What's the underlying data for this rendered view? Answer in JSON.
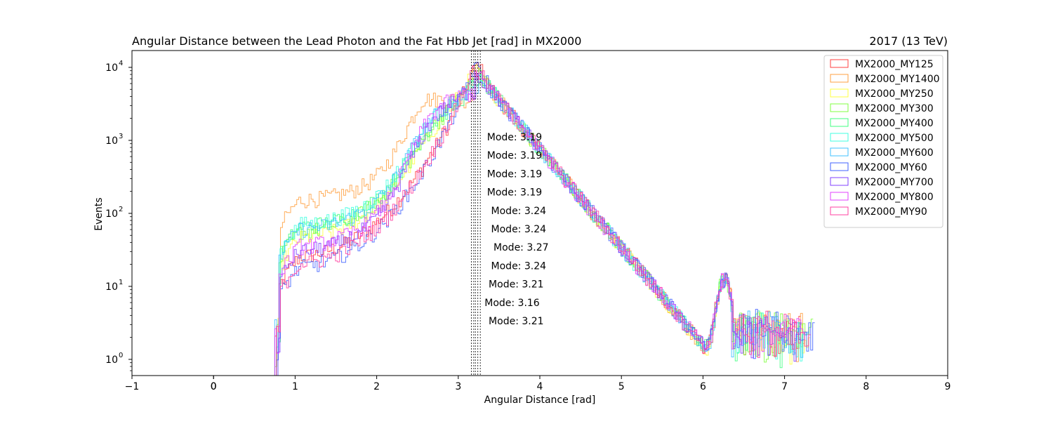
{
  "chart_data": {
    "type": "histogram",
    "title": "Angular Distance between the Lead Photon and the Fat Hbb Jet [rad] in MX2000",
    "right_title": "2017 (13 TeV)",
    "xlabel": "Angular Distance [rad]",
    "ylabel": "Events",
    "xlim": [
      -1,
      9
    ],
    "ylim": [
      0.6,
      17000
    ],
    "yscale": "log",
    "x_ticks": [
      "−1",
      "0",
      "0",
      "1",
      "2",
      "3",
      "4",
      "5",
      "6",
      "7",
      "8",
      "9"
    ],
    "y_ticks": [
      "10",
      "10",
      "10",
      "10",
      "10"
    ],
    "y_tick_exponents": [
      "0",
      "1",
      "2",
      "3",
      "4"
    ],
    "legend_position": "upper right",
    "grid": false,
    "series": [
      {
        "name": "MX2000_MY125",
        "color": "#ff4040",
        "mode": 3.21
      },
      {
        "name": "MX2000_MY1400",
        "color": "#ffa040",
        "mode": 3.16
      },
      {
        "name": "MX2000_MY250",
        "color": "#ffff40",
        "mode": 3.21
      },
      {
        "name": "MX2000_MY300",
        "color": "#80ff40",
        "mode": 3.24
      },
      {
        "name": "MX2000_MY400",
        "color": "#40ff80",
        "mode": 3.27
      },
      {
        "name": "MX2000_MY500",
        "color": "#40ffe0",
        "mode": 3.24
      },
      {
        "name": "MX2000_MY600",
        "color": "#40c0ff",
        "mode": 3.24
      },
      {
        "name": "MX2000_MY60",
        "color": "#4060ff",
        "mode": 3.19
      },
      {
        "name": "MX2000_MY700",
        "color": "#8040ff",
        "mode": 3.19
      },
      {
        "name": "MX2000_MY800",
        "color": "#e040ff",
        "mode": 3.19
      },
      {
        "name": "MX2000_MY90",
        "color": "#ff40a0",
        "mode": 3.19
      }
    ],
    "mode_labels": [
      "Mode: 3.19",
      "Mode: 3.19",
      "Mode: 3.19",
      "Mode: 3.19",
      "Mode: 3.24",
      "Mode: 3.24",
      "Mode: 3.27",
      "Mode: 3.24",
      "Mode: 3.21",
      "Mode: 3.16",
      "Mode: 3.21"
    ],
    "mode_label_x": [
      3.19,
      3.19,
      3.19,
      3.19,
      3.24,
      3.24,
      3.27,
      3.24,
      3.21,
      3.16,
      3.21
    ],
    "mode_lines": [
      3.16,
      3.19,
      3.21,
      3.24,
      3.27
    ],
    "shape": {
      "onset": 0.75,
      "peak_x": 3.2,
      "tail_end": 7.2,
      "bump_x": 6.25,
      "legend_order_params": [
        {
          "plateau": 25,
          "peak": 11000,
          "shoulder": 0.0
        },
        {
          "plateau": 150,
          "peak": 3500,
          "shoulder": 1.0
        },
        {
          "plateau": 45,
          "peak": 9000,
          "shoulder": 0.3
        },
        {
          "plateau": 55,
          "peak": 8000,
          "shoulder": 0.4
        },
        {
          "plateau": 65,
          "peak": 7000,
          "shoulder": 0.5
        },
        {
          "plateau": 70,
          "peak": 6000,
          "shoulder": 0.6
        },
        {
          "plateau": 60,
          "peak": 5200,
          "shoulder": 0.7
        },
        {
          "plateau": 18,
          "peak": 10500,
          "shoulder": 0.0
        },
        {
          "plateau": 30,
          "peak": 4500,
          "shoulder": 0.8
        },
        {
          "plateau": 35,
          "peak": 4200,
          "shoulder": 0.9
        },
        {
          "plateau": 20,
          "peak": 10000,
          "shoulder": 0.05
        }
      ]
    }
  }
}
